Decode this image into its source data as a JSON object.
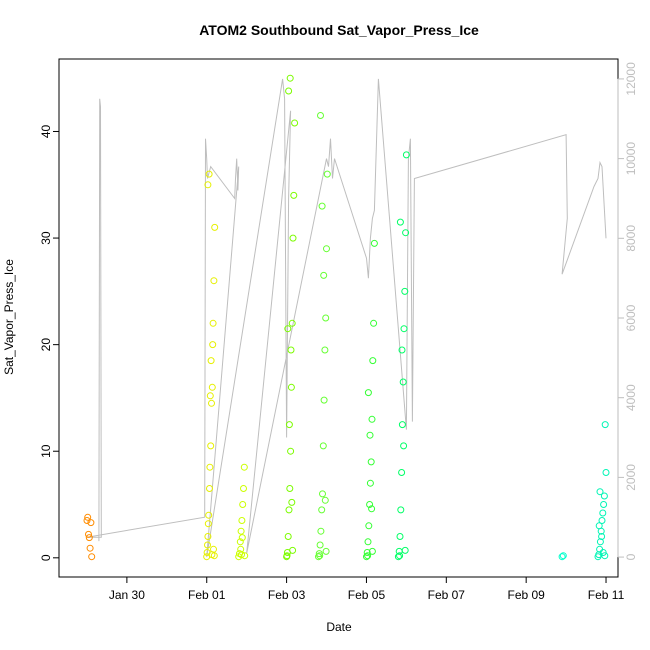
{
  "chart_data": {
    "type": "scatter",
    "title": "ATOM2 Southbound Sat_Vapor_Press_Ice",
    "xlabel": "Date",
    "ylabel": "Sat_Vapor_Press_Ice",
    "x_axis": {
      "unit": "days",
      "range": [
        -1.7,
        12.3
      ],
      "ticks": [
        {
          "value": 0,
          "label": "Jan 30"
        },
        {
          "value": 2,
          "label": "Feb 01"
        },
        {
          "value": 4,
          "label": "Feb 03"
        },
        {
          "value": 6,
          "label": "Feb 05"
        },
        {
          "value": 8,
          "label": "Feb 07"
        },
        {
          "value": 10,
          "label": "Feb 09"
        },
        {
          "value": 12,
          "label": "Feb 11"
        }
      ]
    },
    "y_axis": {
      "range": [
        -1.8,
        46.8
      ],
      "ticks": [
        0,
        10,
        20,
        30,
        40
      ]
    },
    "y2_axis": {
      "range": [
        -500,
        12500
      ],
      "ticks": [
        0,
        2000,
        4000,
        6000,
        8000,
        10000,
        12000
      ],
      "color": "#bebebe"
    },
    "series": [
      {
        "color": "#ff8c00",
        "x": [
          -1.0,
          -0.98,
          -0.96,
          -0.94,
          -0.92,
          -0.9,
          -0.88
        ],
        "y": [
          3.5,
          3.8,
          2.2,
          1.9,
          0.9,
          3.3,
          0.1
        ]
      },
      {
        "color": "#e6f000",
        "x": [
          2.0,
          2.01,
          2.02,
          2.03,
          2.05,
          2.07,
          2.08,
          2.1,
          2.12,
          2.14,
          2.15,
          2.16,
          2.18,
          2.2,
          2.03,
          2.06,
          2.09,
          2.11,
          2.04,
          2.13,
          2.17,
          2.19
        ],
        "y": [
          0.1,
          0.5,
          1.2,
          2.0,
          4.0,
          6.5,
          8.5,
          10.5,
          14.5,
          16.0,
          20.0,
          22.0,
          26.0,
          31.0,
          35.0,
          36.0,
          15.2,
          18.5,
          3.2,
          0.3,
          0.8,
          0.2
        ]
      },
      {
        "color": "#ccff00",
        "x": [
          2.8,
          2.82,
          2.84,
          2.86,
          2.88,
          2.9,
          2.92,
          2.94,
          2.95,
          2.85,
          2.87,
          2.89
        ],
        "y": [
          0.1,
          0.4,
          1.5,
          2.5,
          3.5,
          5.0,
          6.5,
          8.5,
          0.2,
          0.8,
          0.3,
          1.9
        ]
      },
      {
        "color": "#7cfc00",
        "x": [
          4.0,
          4.02,
          4.04,
          4.06,
          4.08,
          4.1,
          4.12,
          4.14,
          4.16,
          4.18,
          4.2,
          4.05,
          4.09,
          4.03,
          4.07,
          4.11,
          4.13,
          4.15,
          4.01
        ],
        "y": [
          0.1,
          0.5,
          2.0,
          4.5,
          6.5,
          10.0,
          16.0,
          22.0,
          30.0,
          34.0,
          40.8,
          43.8,
          45.0,
          21.5,
          12.5,
          19.5,
          5.2,
          0.7,
          0.2
        ]
      },
      {
        "color": "#66ff33",
        "x": [
          4.8,
          4.82,
          4.84,
          4.86,
          4.88,
          4.9,
          4.92,
          4.94,
          4.96,
          4.98,
          5.0,
          5.02,
          4.85,
          4.89,
          4.93,
          4.97,
          4.99,
          4.83
        ],
        "y": [
          0.1,
          0.4,
          1.2,
          2.5,
          4.5,
          6.0,
          10.5,
          14.8,
          19.5,
          22.5,
          29.0,
          36.0,
          41.5,
          33.0,
          26.5,
          5.4,
          0.6,
          0.2
        ]
      },
      {
        "color": "#33ff33",
        "x": [
          6.0,
          6.02,
          6.04,
          6.06,
          6.08,
          6.1,
          6.12,
          6.14,
          6.16,
          6.18,
          6.2,
          6.05,
          6.09,
          6.13,
          6.15,
          6.03
        ],
        "y": [
          0.1,
          0.5,
          1.5,
          3.0,
          5.0,
          7.0,
          9.0,
          13.0,
          18.5,
          22.0,
          29.5,
          15.5,
          11.5,
          4.6,
          0.6,
          0.2
        ]
      },
      {
        "color": "#00ff66",
        "x": [
          6.8,
          6.82,
          6.84,
          6.86,
          6.88,
          6.9,
          6.92,
          6.94,
          6.96,
          6.98,
          7.0,
          6.85,
          6.89,
          6.93,
          6.97,
          6.83
        ],
        "y": [
          0.1,
          0.6,
          2.0,
          4.5,
          8.0,
          12.5,
          16.5,
          21.5,
          25.0,
          30.5,
          37.8,
          31.5,
          19.5,
          10.5,
          0.7,
          0.2
        ]
      },
      {
        "color": "#00ffcc",
        "x": [
          10.9,
          10.93
        ],
        "y": [
          0.1,
          0.2
        ]
      },
      {
        "color": "#00f5b5",
        "x": [
          11.8,
          11.82,
          11.84,
          11.86,
          11.88,
          11.9,
          11.92,
          11.94,
          11.96,
          11.98,
          12.0,
          11.85,
          11.89,
          11.93,
          11.97,
          11.83
        ],
        "y": [
          0.1,
          0.3,
          0.8,
          1.5,
          2.5,
          3.5,
          4.2,
          5.0,
          5.8,
          12.5,
          8.0,
          6.2,
          2.0,
          0.5,
          0.2,
          3.0
        ]
      }
    ],
    "altitude_line": {
      "color": "#bebebe",
      "x": [
        -0.7,
        -0.68,
        -0.66,
        -0.64,
        -1.0,
        1.95,
        1.97,
        2.0,
        2.02,
        2.1,
        2.7,
        2.72,
        2.75,
        2.78,
        2.8,
        2.0,
        3.9,
        3.95,
        4.0,
        4.05,
        4.1,
        3.0,
        5.0,
        5.05,
        5.1,
        5.15,
        5.2,
        6.0,
        6.05,
        6.1,
        6.15,
        6.2,
        6.3,
        7.0,
        7.05,
        7.1,
        7.15,
        7.2,
        11.0,
        11.03,
        10.9,
        11.7,
        11.8,
        11.85,
        11.9,
        12.0
      ],
      "y": [
        400,
        11500,
        11300,
        500,
        500,
        1000,
        10500,
        10000,
        9500,
        9800,
        9000,
        9500,
        10000,
        9200,
        9800,
        0,
        12000,
        11500,
        3000,
        9000,
        11200,
        100,
        10000,
        9800,
        10500,
        9500,
        10000,
        7500,
        7000,
        8000,
        8500,
        8700,
        12000,
        3200,
        10000,
        10500,
        3400,
        9500,
        10600,
        8500,
        7100,
        9300,
        9500,
        9900,
        9800,
        8000
      ]
    }
  }
}
